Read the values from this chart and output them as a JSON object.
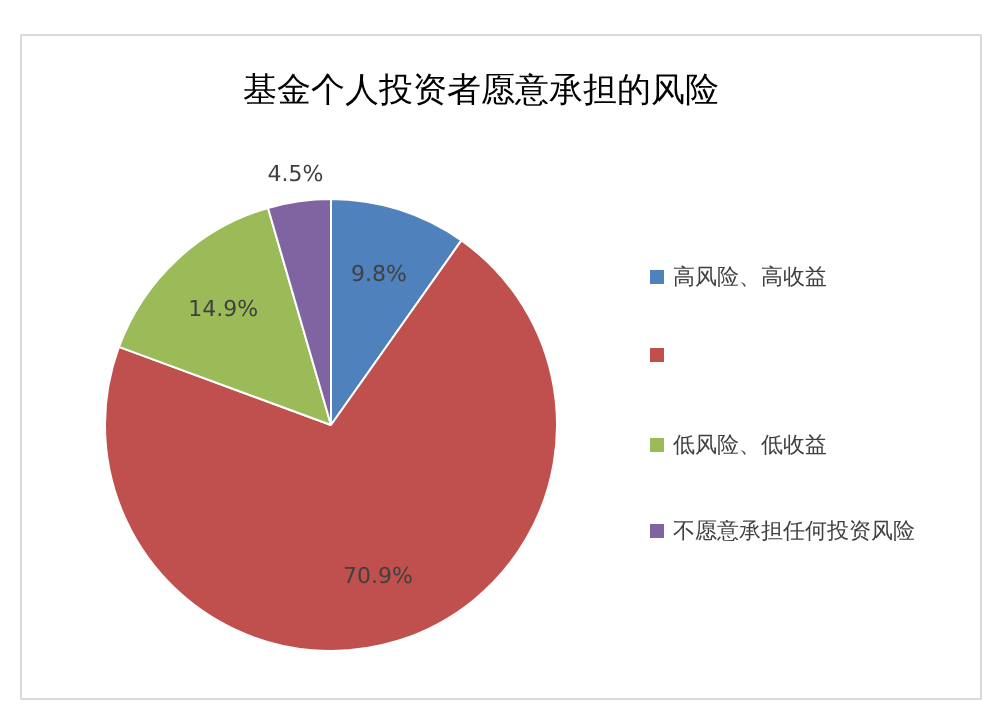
{
  "chart_data": {
    "type": "pie",
    "title": "基金个人投资者愿意承担的风险",
    "categories": [
      "高风险、高收益",
      null,
      "低风险、低收益",
      "不愿意承担任何投资风险"
    ],
    "values": [
      9.8,
      70.9,
      14.9,
      4.5
    ],
    "colors": [
      "#4f81bd",
      "#c0504d",
      "#9bbb59",
      "#8064a2"
    ],
    "value_labels": [
      "9.8%",
      "70.9%",
      "14.9%",
      "4.5%"
    ],
    "legend": "right"
  }
}
